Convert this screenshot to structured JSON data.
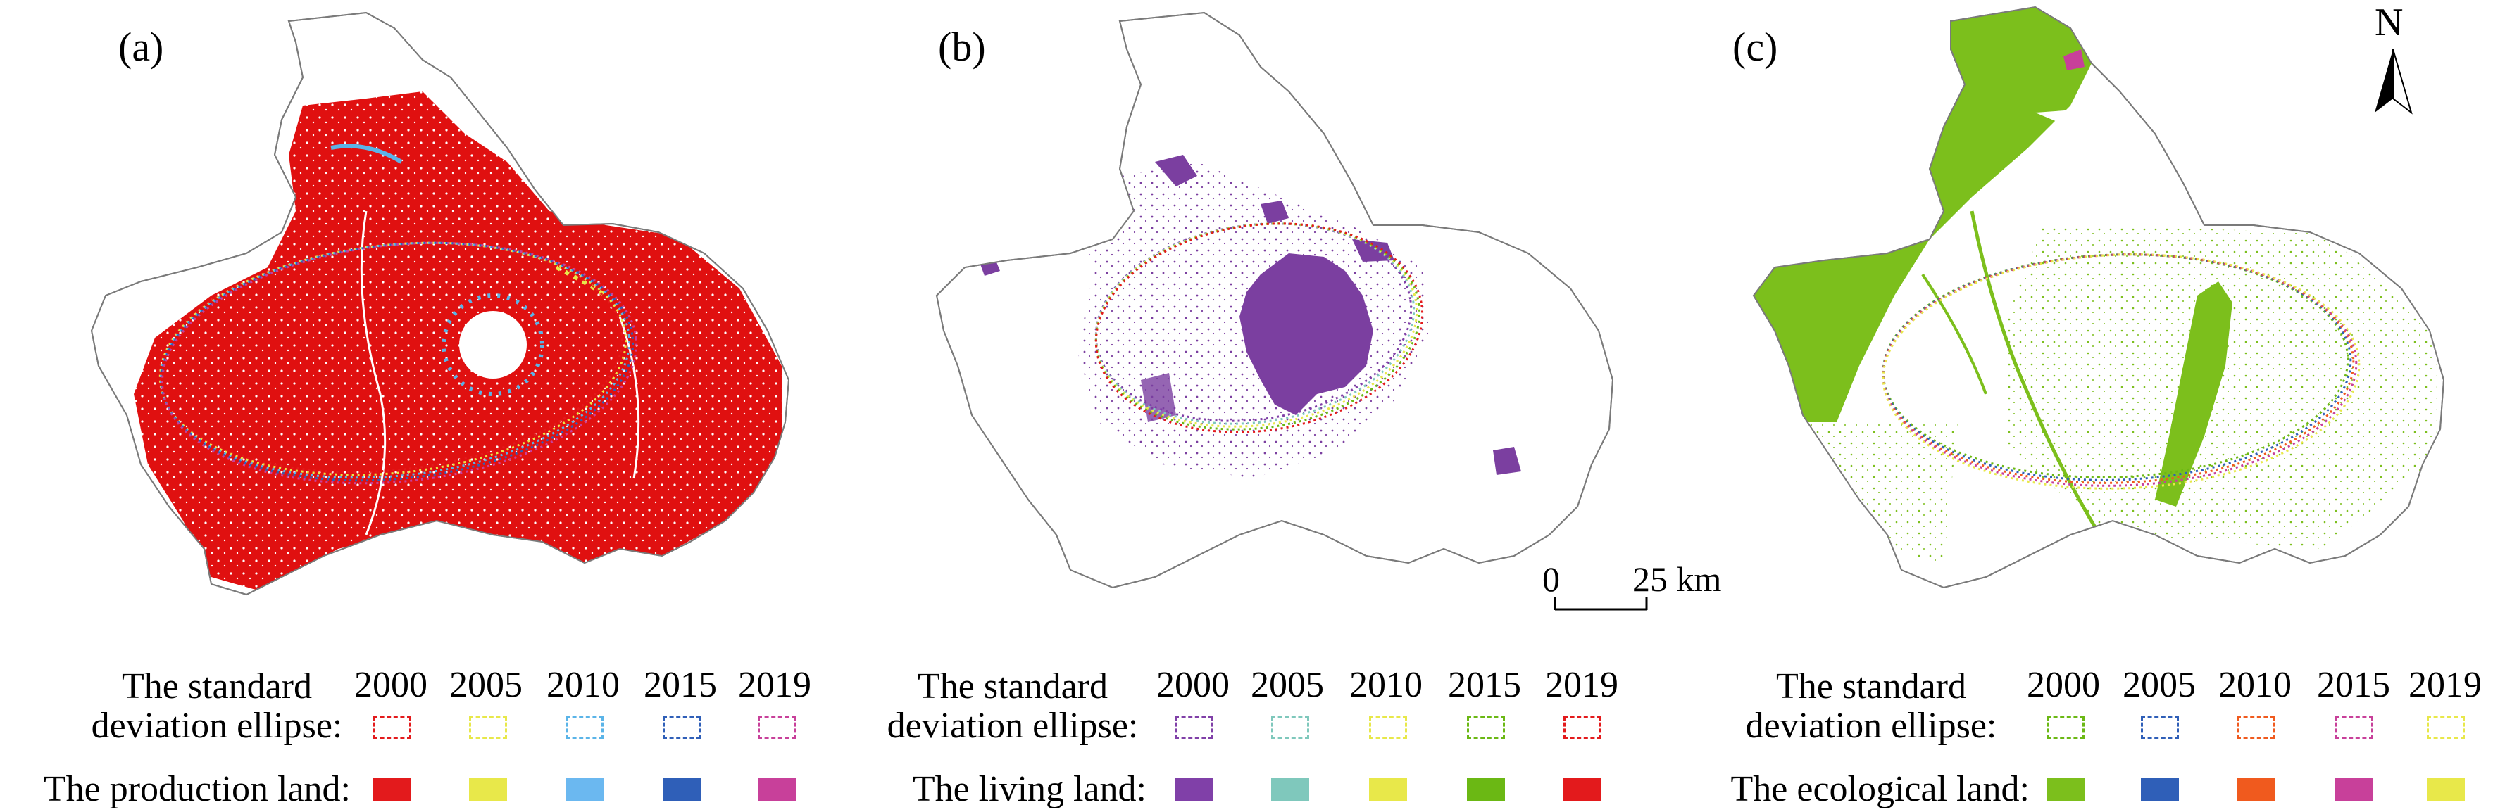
{
  "north_arrow": {
    "label": "N"
  },
  "scale_bar": {
    "start": "0",
    "end": "25 km"
  },
  "years": [
    "2000",
    "2005",
    "2010",
    "2015",
    "2019"
  ],
  "panels": [
    {
      "label": "(a)",
      "legend_ellipse_label": "deviation ellipse:",
      "legend_title_line1": "The standard",
      "legend_land_label": "The production land:",
      "ellipse_colors": [
        "#e31a1c",
        "#e8e84a",
        "#5ab4e8",
        "#2f5fb8",
        "#c8409a"
      ],
      "land_colors": [
        "#e31a1c",
        "#e8e84a",
        "#6bb8f0",
        "#2f5fb8",
        "#c8409a"
      ],
      "main_fill": "#e01010"
    },
    {
      "label": "(b)",
      "legend_ellipse_label": "deviation ellipse:",
      "legend_title_line1": "The standard",
      "legend_land_label": "The living land:",
      "ellipse_colors": [
        "#8040a8",
        "#7fc8bc",
        "#e8e84a",
        "#6bb814",
        "#e31a1c"
      ],
      "land_colors": [
        "#8040a8",
        "#7fc8bc",
        "#e8e84a",
        "#6bb814",
        "#e31a1c"
      ],
      "main_fill": "#7b3fa0"
    },
    {
      "label": "(c)",
      "legend_ellipse_label": "deviation ellipse:",
      "legend_title_line1": "The standard",
      "legend_land_label": "The ecological land:",
      "ellipse_colors": [
        "#6bb814",
        "#2f5fb8",
        "#f05a1e",
        "#c8409a",
        "#e8e84a"
      ],
      "land_colors": [
        "#7cbf1c",
        "#2f5fb8",
        "#f05a1e",
        "#c8409a",
        "#e8e84a"
      ],
      "main_fill": "#7cbf1c"
    }
  ]
}
